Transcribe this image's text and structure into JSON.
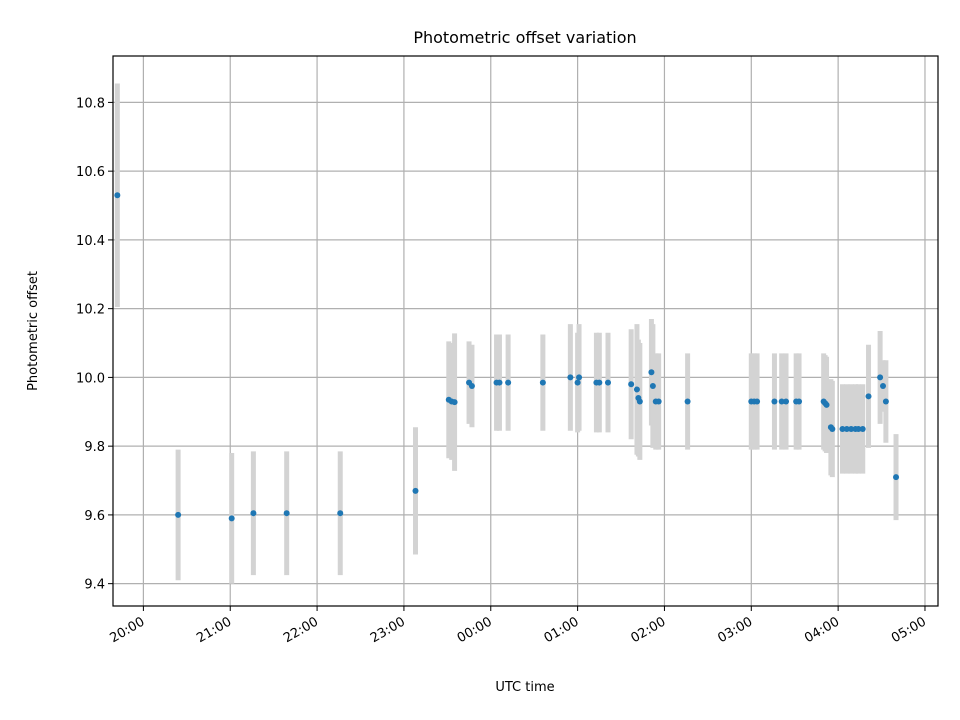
{
  "chart_data": {
    "type": "scatter",
    "title": "Photometric offset variation",
    "xlabel": "UTC time",
    "ylabel": "Photometric offset",
    "x_unit": "time of day (UTC), night spanning midnight",
    "xlim": [
      "19:39",
      "05:09"
    ],
    "ylim": [
      9.335,
      10.935
    ],
    "grid": true,
    "colors": {
      "points": "#1f77b4",
      "errorbars": "#d3d3d3",
      "grid": "#b0b0b0"
    },
    "x_ticks": [
      "20:00",
      "21:00",
      "22:00",
      "23:00",
      "00:00",
      "01:00",
      "02:00",
      "03:00",
      "04:00",
      "05:00"
    ],
    "y_ticks": [
      "9.4",
      "9.6",
      "9.8",
      "10.0",
      "10.2",
      "10.4",
      "10.6",
      "10.8"
    ],
    "series": [
      {
        "points": [
          {
            "x": "19:42",
            "y": 10.53,
            "yerr": 0.325
          },
          {
            "x": "20:24",
            "y": 9.6,
            "yerr": 0.19
          },
          {
            "x": "21:01",
            "y": 9.59,
            "yerr": 0.19
          },
          {
            "x": "21:16",
            "y": 9.605,
            "yerr": 0.18
          },
          {
            "x": "21:39",
            "y": 9.605,
            "yerr": 0.18
          },
          {
            "x": "22:16",
            "y": 9.605,
            "yerr": 0.18
          },
          {
            "x": "23:08",
            "y": 9.67,
            "yerr": 0.185
          },
          {
            "x": "23:31",
            "y": 9.935,
            "yerr": 0.17
          },
          {
            "x": "23:33",
            "y": 9.93,
            "yerr": 0.17
          },
          {
            "x": "23:35",
            "y": 9.928,
            "yerr": 0.2
          },
          {
            "x": "23:45",
            "y": 9.985,
            "yerr": 0.12
          },
          {
            "x": "23:47",
            "y": 9.975,
            "yerr": 0.12
          },
          {
            "x": "00:04",
            "y": 9.985,
            "yerr": 0.14
          },
          {
            "x": "00:06",
            "y": 9.985,
            "yerr": 0.14
          },
          {
            "x": "00:12",
            "y": 9.985,
            "yerr": 0.14
          },
          {
            "x": "00:36",
            "y": 9.985,
            "yerr": 0.14
          },
          {
            "x": "00:55",
            "y": 10.0,
            "yerr": 0.155
          },
          {
            "x": "01:00",
            "y": 9.985,
            "yerr": 0.145
          },
          {
            "x": "01:01",
            "y": 10.0,
            "yerr": 0.155
          },
          {
            "x": "01:13",
            "y": 9.985,
            "yerr": 0.145
          },
          {
            "x": "01:15",
            "y": 9.985,
            "yerr": 0.145
          },
          {
            "x": "01:21",
            "y": 9.985,
            "yerr": 0.145
          },
          {
            "x": "01:37",
            "y": 9.98,
            "yerr": 0.16
          },
          {
            "x": "01:41",
            "y": 9.965,
            "yerr": 0.19
          },
          {
            "x": "01:42",
            "y": 9.94,
            "yerr": 0.17
          },
          {
            "x": "01:43",
            "y": 9.93,
            "yerr": 0.17
          },
          {
            "x": "01:51",
            "y": 10.015,
            "yerr": 0.155
          },
          {
            "x": "01:52",
            "y": 9.975,
            "yerr": 0.18
          },
          {
            "x": "01:54",
            "y": 9.93,
            "yerr": 0.14
          },
          {
            "x": "01:56",
            "y": 9.93,
            "yerr": 0.14
          },
          {
            "x": "02:16",
            "y": 9.93,
            "yerr": 0.14
          },
          {
            "x": "03:00",
            "y": 9.93,
            "yerr": 0.14
          },
          {
            "x": "03:02",
            "y": 9.93,
            "yerr": 0.14
          },
          {
            "x": "03:04",
            "y": 9.93,
            "yerr": 0.14
          },
          {
            "x": "03:16",
            "y": 9.93,
            "yerr": 0.14
          },
          {
            "x": "03:21",
            "y": 9.93,
            "yerr": 0.14
          },
          {
            "x": "03:24",
            "y": 9.93,
            "yerr": 0.14
          },
          {
            "x": "03:31",
            "y": 9.93,
            "yerr": 0.14
          },
          {
            "x": "03:33",
            "y": 9.93,
            "yerr": 0.14
          },
          {
            "x": "03:50",
            "y": 9.93,
            "yerr": 0.14
          },
          {
            "x": "03:51",
            "y": 9.925,
            "yerr": 0.14
          },
          {
            "x": "03:52",
            "y": 9.92,
            "yerr": 0.14
          },
          {
            "x": "03:55",
            "y": 9.855,
            "yerr": 0.14
          },
          {
            "x": "03:56",
            "y": 9.85,
            "yerr": 0.14
          },
          {
            "x": "04:03",
            "y": 9.85,
            "yerr": 0.13
          },
          {
            "x": "04:06",
            "y": 9.85,
            "yerr": 0.13
          },
          {
            "x": "04:09",
            "y": 9.85,
            "yerr": 0.13
          },
          {
            "x": "04:12",
            "y": 9.85,
            "yerr": 0.13
          },
          {
            "x": "04:14",
            "y": 9.85,
            "yerr": 0.13
          },
          {
            "x": "04:17",
            "y": 9.85,
            "yerr": 0.13
          },
          {
            "x": "04:21",
            "y": 9.945,
            "yerr": 0.15
          },
          {
            "x": "04:29",
            "y": 10.0,
            "yerr": 0.135
          },
          {
            "x": "04:31",
            "y": 9.975,
            "yerr": 0.075
          },
          {
            "x": "04:33",
            "y": 9.93,
            "yerr": 0.12
          },
          {
            "x": "04:40",
            "y": 9.71,
            "yerr": 0.125
          }
        ]
      }
    ]
  }
}
